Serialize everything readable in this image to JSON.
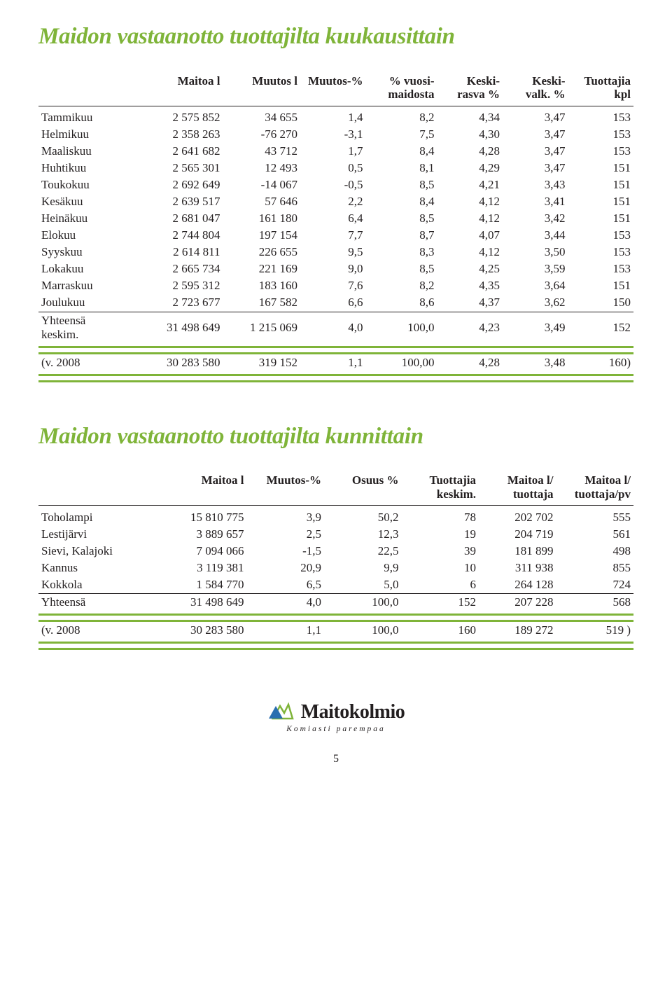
{
  "section1": {
    "title": "Maidon vastaanotto tuottajilta kuukausittain",
    "headers": [
      "",
      "Maitoa l",
      "Muutos l",
      "Muutos-%",
      "% vuosi-\nmaidosta",
      "Keski-\nrasva %",
      "Keski-\nvalk. %",
      "Tuottajia\nkpl"
    ],
    "rows": [
      [
        "Tammikuu",
        "2 575 852",
        "34 655",
        "1,4",
        "8,2",
        "4,34",
        "3,47",
        "153"
      ],
      [
        "Helmikuu",
        "2 358 263",
        "-76 270",
        "-3,1",
        "7,5",
        "4,30",
        "3,47",
        "153"
      ],
      [
        "Maaliskuu",
        "2 641 682",
        "43 712",
        "1,7",
        "8,4",
        "4,28",
        "3,47",
        "153"
      ],
      [
        "Huhtikuu",
        "2 565 301",
        "12 493",
        "0,5",
        "8,1",
        "4,29",
        "3,47",
        "151"
      ],
      [
        "Toukokuu",
        "2 692 649",
        "-14 067",
        "-0,5",
        "8,5",
        "4,21",
        "3,43",
        "151"
      ],
      [
        "Kesäkuu",
        "2 639 517",
        "57 646",
        "2,2",
        "8,4",
        "4,12",
        "3,41",
        "151"
      ],
      [
        "Heinäkuu",
        "2 681 047",
        "161 180",
        "6,4",
        "8,5",
        "4,12",
        "3,42",
        "151"
      ],
      [
        "Elokuu",
        "2 744 804",
        "197 154",
        "7,7",
        "8,7",
        "4,07",
        "3,44",
        "153"
      ],
      [
        "Syyskuu",
        "2 614 811",
        "226 655",
        "9,5",
        "8,3",
        "4,12",
        "3,50",
        "153"
      ],
      [
        "Lokakuu",
        "2 665 734",
        "221 169",
        "9,0",
        "8,5",
        "4,25",
        "3,59",
        "153"
      ],
      [
        "Marraskuu",
        "2 595 312",
        "183 160",
        "7,6",
        "8,2",
        "4,35",
        "3,64",
        "151"
      ],
      [
        "Joulukuu",
        "2 723 677",
        "167 582",
        "6,6",
        "8,6",
        "4,37",
        "3,62",
        "150"
      ]
    ],
    "summary_label": "Yhteensä\nkeskim.",
    "summary": [
      "31 498 649",
      "1 215 069",
      "4,0",
      "100,0",
      "4,23",
      "3,49",
      "152"
    ],
    "compare_label": "(v. 2008",
    "compare": [
      "30 283 580",
      "319 152",
      "1,1",
      "100,00",
      "4,28",
      "3,48",
      "160)"
    ]
  },
  "section2": {
    "title": "Maidon vastaanotto tuottajilta kunnittain",
    "headers": [
      "",
      "Maitoa l",
      "Muutos-%",
      "Osuus %",
      "Tuottajia\nkeskim.",
      "Maitoa l/\ntuottaja",
      "Maitoa l/\ntuottaja/pv"
    ],
    "rows": [
      [
        "Toholampi",
        "15 810 775",
        "3,9",
        "50,2",
        "78",
        "202 702",
        "555"
      ],
      [
        "Lestijärvi",
        "3 889 657",
        "2,5",
        "12,3",
        "19",
        "204 719",
        "561"
      ],
      [
        "Sievi, Kalajoki",
        "7 094 066",
        "-1,5",
        "22,5",
        "39",
        "181 899",
        "498"
      ],
      [
        "Kannus",
        "3 119 381",
        "20,9",
        "9,9",
        "10",
        "311 938",
        "855"
      ],
      [
        "Kokkola",
        "1 584 770",
        "6,5",
        "5,0",
        "6",
        "264 128",
        "724"
      ]
    ],
    "summary_label": "Yhteensä",
    "summary": [
      "31 498 649",
      "4,0",
      "100,0",
      "152",
      "207 228",
      "568"
    ],
    "compare_label": "(v. 2008",
    "compare": [
      "30 283 580",
      "1,1",
      "100,0",
      "160",
      "189 272",
      "519 )"
    ]
  },
  "logo": {
    "name": "Maitokolmio",
    "tagline": "Komiasti parempaa"
  },
  "page": "5",
  "colors": {
    "accent": "#7fb439"
  }
}
